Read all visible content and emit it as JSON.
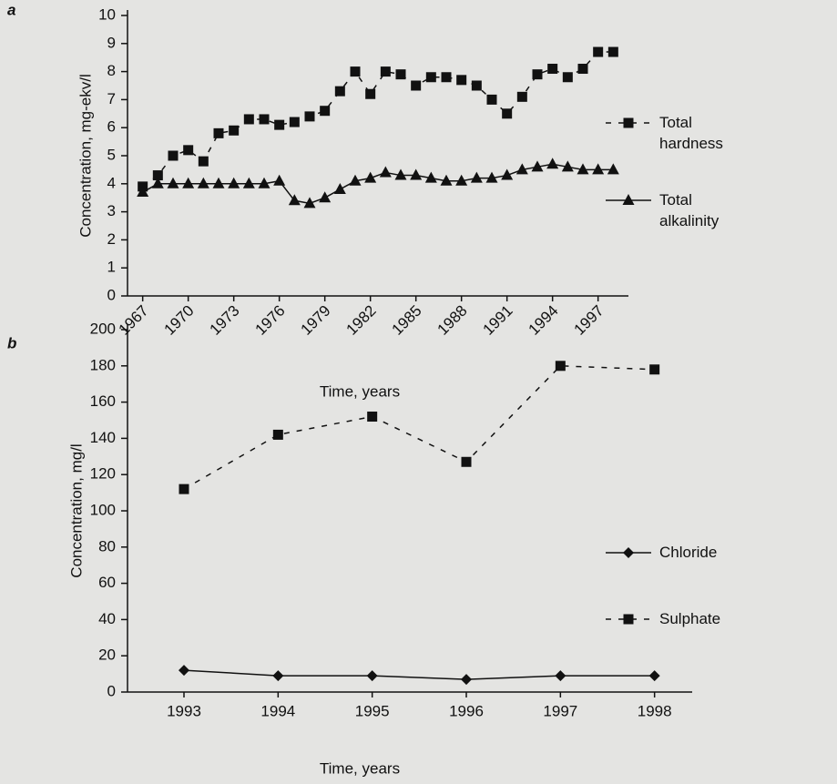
{
  "chart_data": [
    {
      "type": "line",
      "panel": "a",
      "y_label": "Concentration, mg-ekv/l",
      "x_label": "Time, years",
      "x": [
        1967,
        1968,
        1969,
        1970,
        1971,
        1972,
        1973,
        1974,
        1975,
        1976,
        1977,
        1978,
        1979,
        1980,
        1981,
        1982,
        1983,
        1984,
        1985,
        1986,
        1987,
        1988,
        1989,
        1990,
        1991,
        1992,
        1993,
        1994,
        1995,
        1996,
        1997,
        1998
      ],
      "series": [
        {
          "name": "Total hardness",
          "color": "#111111",
          "marker": "square",
          "dashed": true,
          "values": [
            3.9,
            4.3,
            5.0,
            5.2,
            4.8,
            5.8,
            5.9,
            6.3,
            6.3,
            6.1,
            6.2,
            6.4,
            6.6,
            7.3,
            8.0,
            7.2,
            8.0,
            7.9,
            7.5,
            7.8,
            7.8,
            7.7,
            7.5,
            7.0,
            6.5,
            7.1,
            7.9,
            8.1,
            7.8,
            8.1,
            8.7,
            8.7
          ]
        },
        {
          "name": "Total alkalinity",
          "color": "#111111",
          "marker": "triangle",
          "dashed": false,
          "values": [
            3.7,
            4.0,
            4.0,
            4.0,
            4.0,
            4.0,
            4.0,
            4.0,
            4.0,
            4.1,
            3.4,
            3.3,
            3.5,
            3.8,
            4.1,
            4.2,
            4.4,
            4.3,
            4.3,
            4.2,
            4.1,
            4.1,
            4.2,
            4.2,
            4.3,
            4.5,
            4.6,
            4.7,
            4.6,
            4.5,
            4.5,
            4.5
          ]
        }
      ],
      "xlim": [
        1966,
        1999
      ],
      "xticks": [
        1967,
        1970,
        1973,
        1976,
        1979,
        1982,
        1985,
        1988,
        1991,
        1994,
        1997
      ],
      "ylim": [
        0,
        10
      ],
      "yticks": [
        0,
        1,
        2,
        3,
        4,
        5,
        6,
        7,
        8,
        9,
        10
      ]
    },
    {
      "type": "line",
      "panel": "b",
      "y_label": "Concentration, mg/l",
      "x_label": "Time, years",
      "x": [
        1993,
        1994,
        1995,
        1996,
        1997,
        1998
      ],
      "series": [
        {
          "name": "Chloride",
          "color": "#111111",
          "marker": "diamond",
          "dashed": false,
          "values": [
            12,
            9,
            9,
            7,
            9,
            9
          ]
        },
        {
          "name": "Sulphate",
          "color": "#111111",
          "marker": "square",
          "dashed": true,
          "values": [
            112,
            142,
            152,
            127,
            180,
            178
          ]
        }
      ],
      "xlim": [
        1992.4,
        1998.4
      ],
      "xticks": [
        1993,
        1994,
        1995,
        1996,
        1997,
        1998
      ],
      "ylim": [
        0,
        200
      ],
      "yticks": [
        0,
        20,
        40,
        60,
        80,
        100,
        120,
        140,
        160,
        180,
        200
      ]
    }
  ]
}
